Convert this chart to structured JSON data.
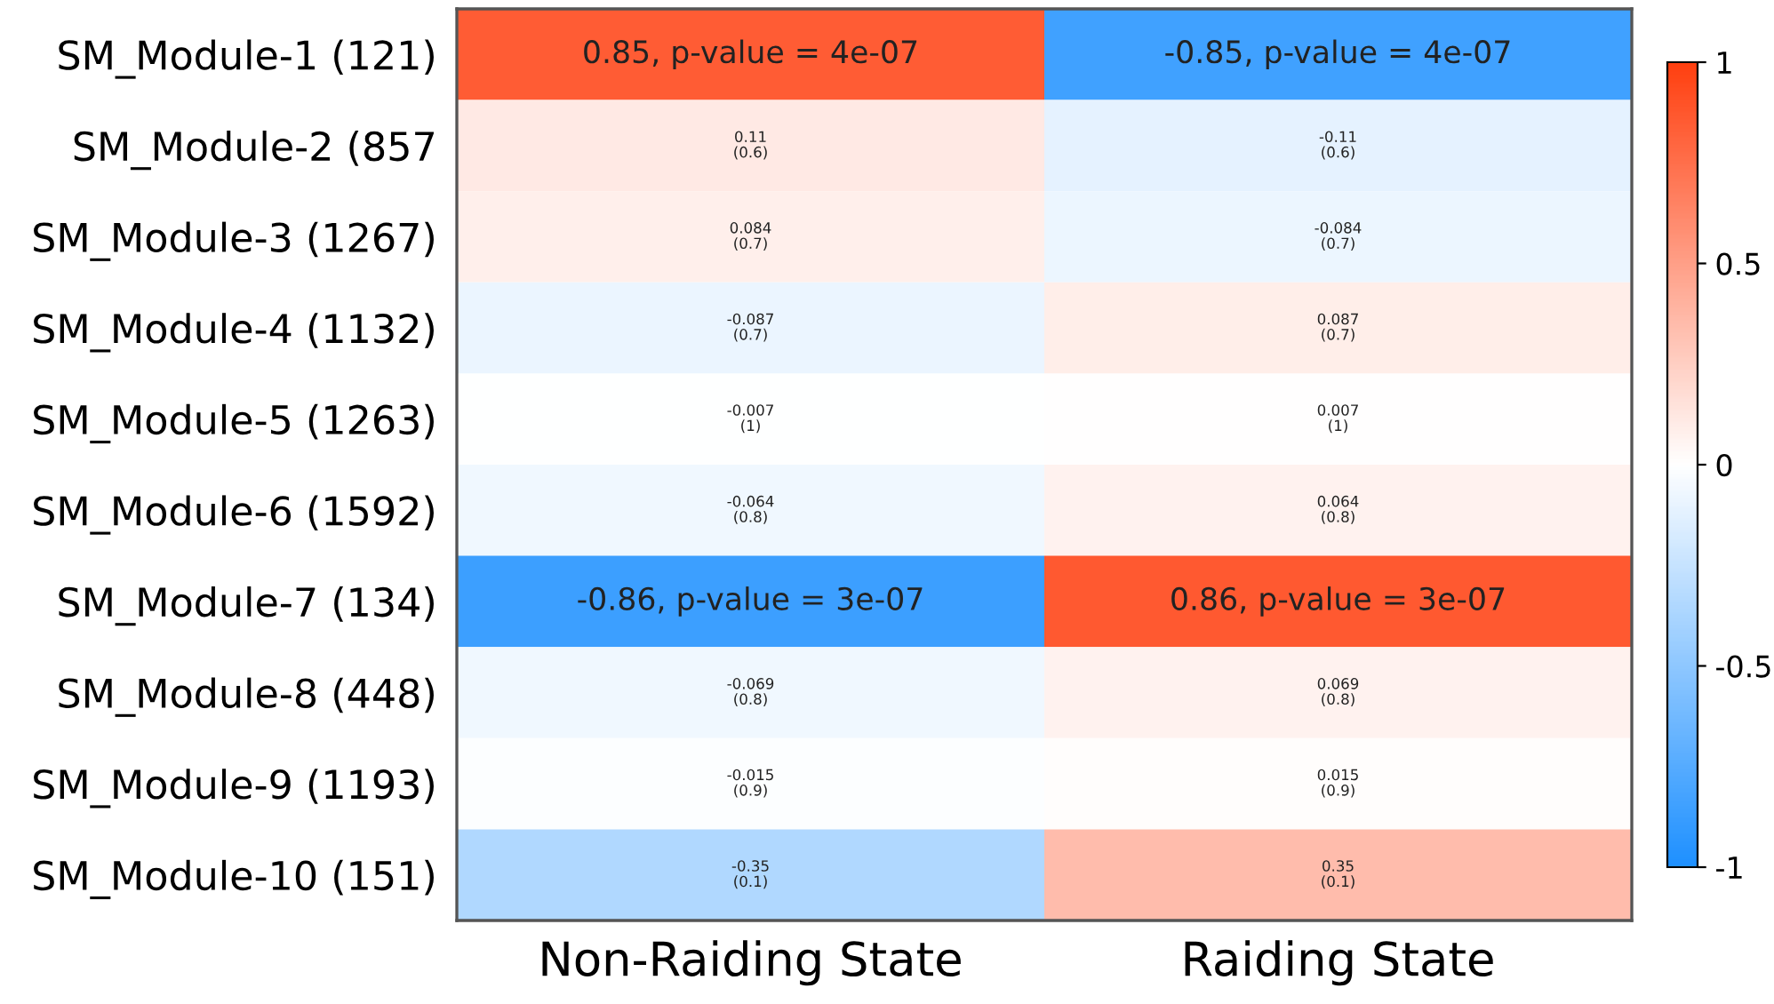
{
  "chart_data": {
    "type": "heatmap",
    "categories": [
      "Non-Raiding State",
      "Raiding State"
    ],
    "y_categories": [
      "SM_Module-1 (121)",
      "SM_Module-2 (857",
      "SM_Module-3 (1267)",
      "SM_Module-4 (1132)",
      "SM_Module-5 (1263)",
      "SM_Module-6 (1592)",
      "SM_Module-7 (134)",
      "SM_Module-8 (448)",
      "SM_Module-9 (1193)",
      "SM_Module-10 (151)"
    ],
    "cells": [
      [
        0.85,
        -0.85
      ],
      [
        0.11,
        -0.11
      ],
      [
        0.084,
        -0.084
      ],
      [
        -0.087,
        0.087
      ],
      [
        -0.007,
        0.007
      ],
      [
        -0.064,
        0.064
      ],
      [
        -0.86,
        0.86
      ],
      [
        -0.069,
        0.069
      ],
      [
        -0.015,
        0.015
      ],
      [
        -0.35,
        0.35
      ]
    ],
    "cell_labels": [
      [
        "0.85, p-value = 4e-07",
        "-0.85, p-value = 4e-07"
      ],
      [
        "0.11\n(0.6)",
        "-0.11\n(0.6)"
      ],
      [
        "0.084\n(0.7)",
        "-0.084\n(0.7)"
      ],
      [
        "-0.087\n(0.7)",
        "0.087\n(0.7)"
      ],
      [
        "-0.007\n(1)",
        "0.007\n(1)"
      ],
      [
        "-0.064\n(0.8)",
        "0.064\n(0.8)"
      ],
      [
        "-0.86, p-value = 3e-07",
        "0.86, p-value = 3e-07"
      ],
      [
        "-0.069\n(0.8)",
        "0.069\n(0.8)"
      ],
      [
        "-0.015\n(0.9)",
        "0.015\n(0.9)"
      ],
      [
        "-0.35\n(0.1)",
        "0.35\n(0.1)"
      ]
    ],
    "clim": [
      -1,
      1
    ],
    "cticks": [
      -1,
      -0.5,
      0,
      0.5,
      1
    ]
  }
}
